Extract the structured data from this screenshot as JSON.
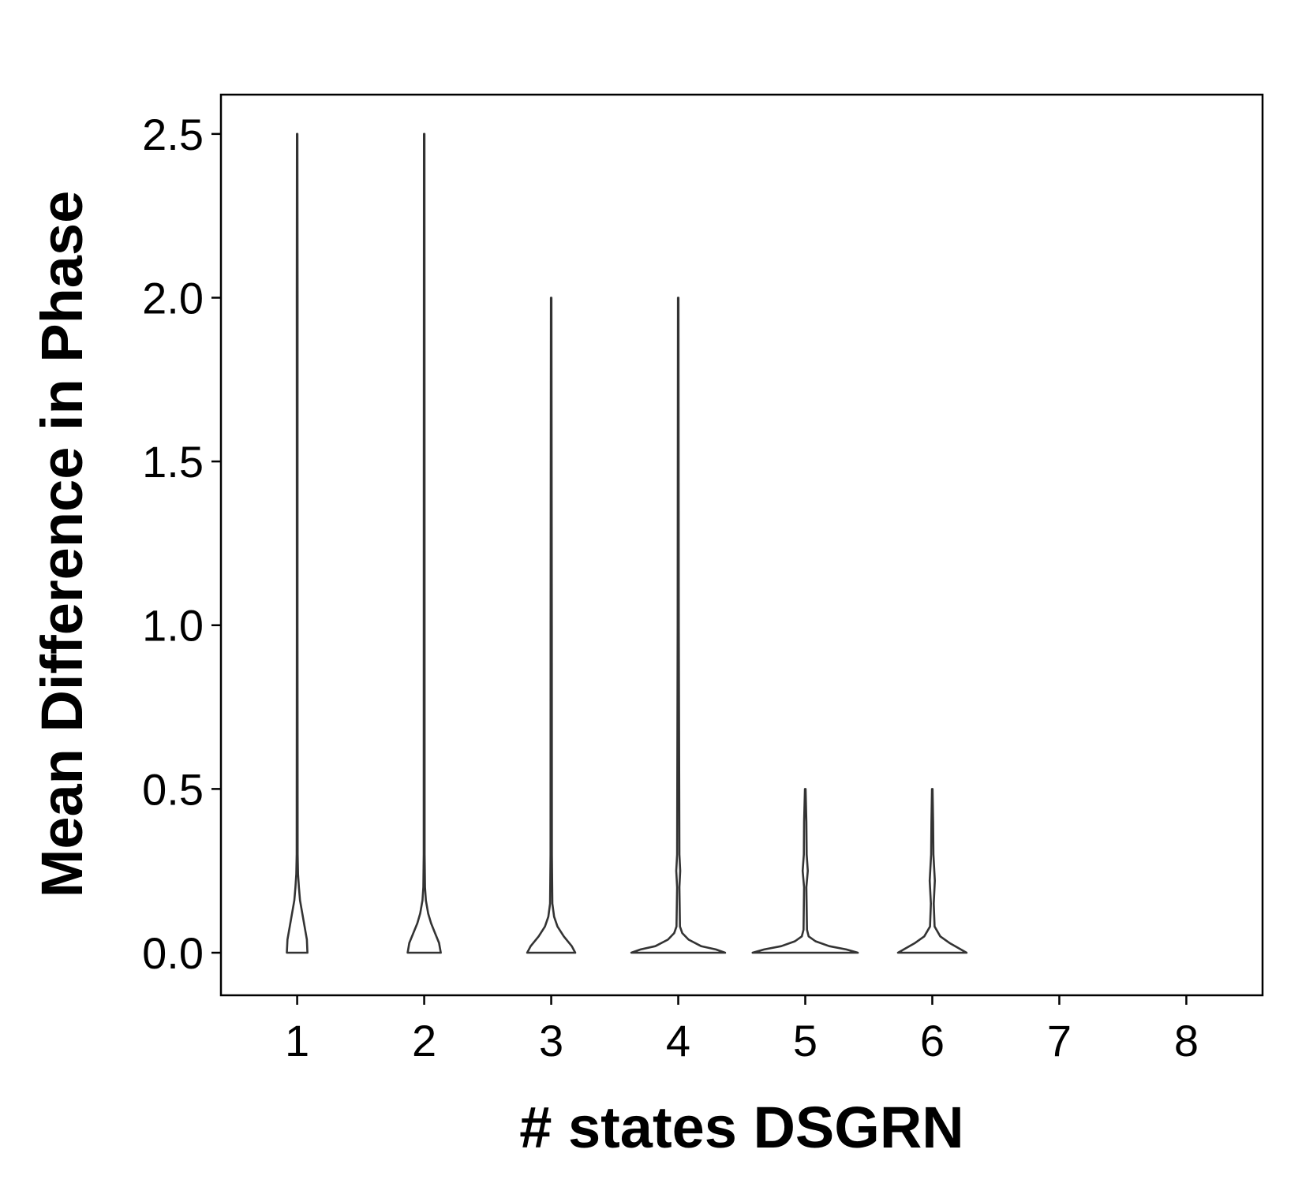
{
  "chart_data": {
    "type": "violin",
    "title": "",
    "xlabel": "# states DSGRN",
    "ylabel": "Mean Difference in Phase",
    "categories": [
      "1",
      "2",
      "3",
      "4",
      "5",
      "6",
      "7",
      "8"
    ],
    "y_ticks": [
      "0.0",
      "0.5",
      "1.0",
      "1.5",
      "2.0",
      "2.5"
    ],
    "ylim": [
      -0.13,
      2.62
    ],
    "grid": false,
    "legend": "none",
    "violins": [
      {
        "category": "1",
        "max": 2.5,
        "profile": [
          [
            0.0,
            0.18
          ],
          [
            0.04,
            0.17
          ],
          [
            0.08,
            0.13
          ],
          [
            0.12,
            0.09
          ],
          [
            0.16,
            0.05
          ],
          [
            0.2,
            0.03
          ],
          [
            0.24,
            0.015
          ],
          [
            0.3,
            0.008
          ],
          [
            1.0,
            0.006
          ],
          [
            2.0,
            0.007
          ],
          [
            2.5,
            0.004
          ]
        ]
      },
      {
        "category": "2",
        "max": 2.5,
        "profile": [
          [
            0.0,
            0.29
          ],
          [
            0.03,
            0.26
          ],
          [
            0.06,
            0.19
          ],
          [
            0.09,
            0.12
          ],
          [
            0.12,
            0.07
          ],
          [
            0.16,
            0.03
          ],
          [
            0.2,
            0.015
          ],
          [
            0.3,
            0.008
          ],
          [
            1.5,
            0.006
          ],
          [
            2.5,
            0.004
          ]
        ]
      },
      {
        "category": "3",
        "max": 2.0,
        "profile": [
          [
            0.0,
            0.42
          ],
          [
            0.02,
            0.36
          ],
          [
            0.05,
            0.22
          ],
          [
            0.08,
            0.11
          ],
          [
            0.11,
            0.05
          ],
          [
            0.15,
            0.02
          ],
          [
            0.3,
            0.012
          ],
          [
            1.0,
            0.01
          ],
          [
            2.0,
            0.004
          ]
        ]
      },
      {
        "category": "4",
        "max": 2.0,
        "profile": [
          [
            0.0,
            0.82
          ],
          [
            0.01,
            0.66
          ],
          [
            0.02,
            0.4
          ],
          [
            0.04,
            0.18
          ],
          [
            0.06,
            0.07
          ],
          [
            0.08,
            0.03
          ],
          [
            0.2,
            0.02
          ],
          [
            0.25,
            0.035
          ],
          [
            0.3,
            0.02
          ],
          [
            1.0,
            0.01
          ],
          [
            2.0,
            0.004
          ]
        ]
      },
      {
        "category": "5",
        "max": 0.5,
        "profile": [
          [
            0.0,
            0.92
          ],
          [
            0.01,
            0.72
          ],
          [
            0.02,
            0.42
          ],
          [
            0.035,
            0.18
          ],
          [
            0.05,
            0.06
          ],
          [
            0.07,
            0.03
          ],
          [
            0.2,
            0.02
          ],
          [
            0.25,
            0.045
          ],
          [
            0.3,
            0.025
          ],
          [
            0.4,
            0.02
          ],
          [
            0.5,
            0.006
          ]
        ]
      },
      {
        "category": "6",
        "max": 0.5,
        "profile": [
          [
            0.0,
            0.6
          ],
          [
            0.01,
            0.5
          ],
          [
            0.03,
            0.3
          ],
          [
            0.05,
            0.14
          ],
          [
            0.08,
            0.04
          ],
          [
            0.15,
            0.025
          ],
          [
            0.22,
            0.045
          ],
          [
            0.3,
            0.02
          ],
          [
            0.4,
            0.015
          ],
          [
            0.5,
            0.005
          ]
        ]
      }
    ]
  }
}
